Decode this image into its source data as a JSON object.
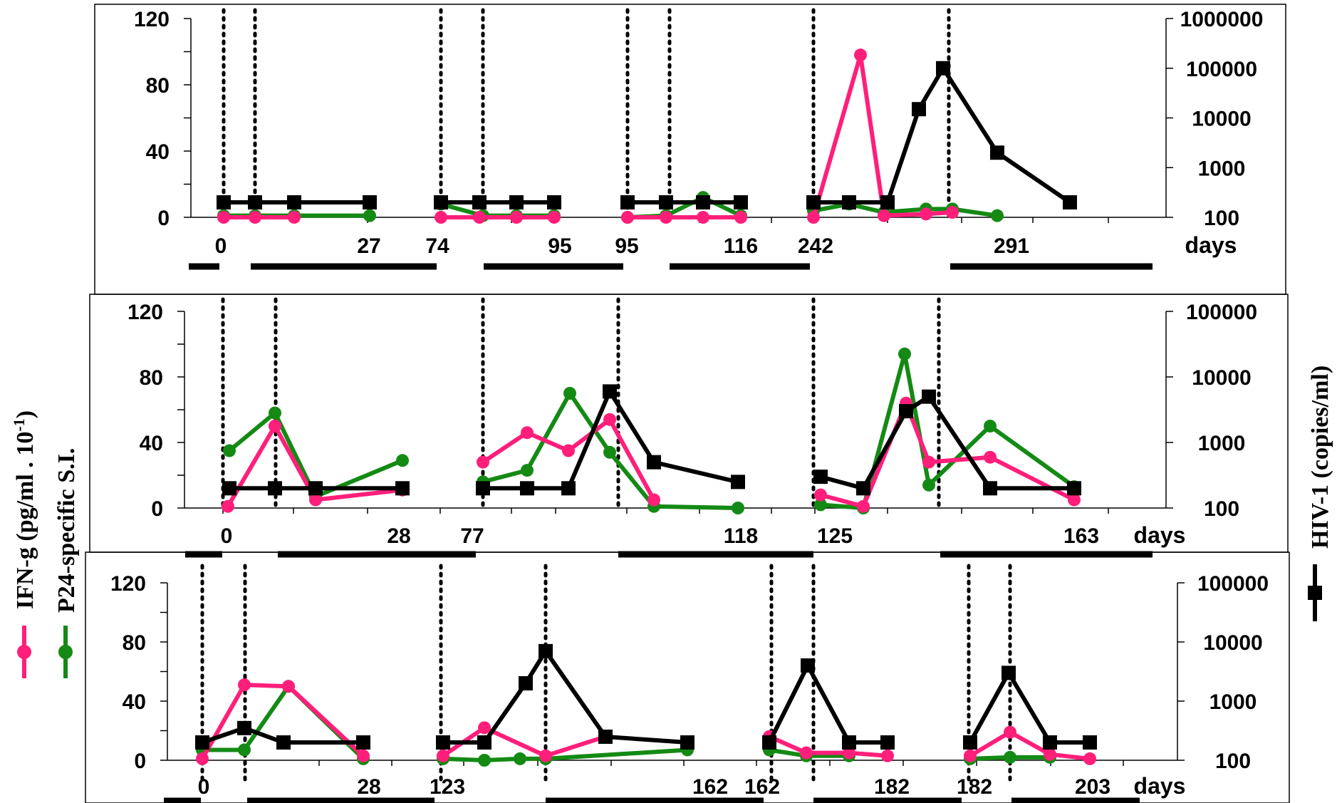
{
  "colors": {
    "ifn": "#ff1f7a",
    "p24": "#148a14",
    "hiv": "#000000"
  },
  "legend": {
    "left_line1": "IFN-g (pg/ml . 10",
    "left_line1_sup": "-1",
    "left_line1_end": ")",
    "left_line2": "P24-specific S.I.",
    "right": "HIV-1 (copies/ml)"
  },
  "chart_data": [
    {
      "type": "line",
      "panel": "top",
      "ylim": [
        0,
        120
      ],
      "yticks": [
        "120",
        "80",
        "40",
        "0"
      ],
      "y2scale": "log",
      "y2lim": [
        100,
        1000000
      ],
      "y2ticks": [
        "1000000",
        "100000",
        "10000",
        "1000",
        "100"
      ],
      "xunit": "days",
      "xlabels": [
        "0",
        "27",
        "74",
        "95",
        "95",
        "116",
        "242",
        "291"
      ],
      "vlines": 9,
      "series": [
        {
          "name": "IFN-g",
          "segments": [
            [
              0,
              0,
              0
            ],
            [
              0,
              0,
              0,
              0
            ],
            [
              0,
              0,
              0,
              0
            ],
            [
              0,
              98,
              1,
              2,
              3
            ]
          ]
        },
        {
          "name": "P24-specific S.I.",
          "segments": [
            [
              1,
              1,
              1,
              1
            ],
            [
              8,
              1,
              1,
              1
            ],
            [
              0,
              1,
              12,
              1
            ],
            [
              4,
              8,
              3,
              5,
              5,
              1
            ]
          ]
        },
        {
          "name": "HIV-1",
          "segments": [
            [
              200,
              200,
              200,
              200
            ],
            [
              200,
              200,
              200,
              200
            ],
            [
              200,
              200,
              200,
              200
            ],
            [
              200,
              200,
              200,
              15000,
              100000,
              2000,
              200
            ]
          ]
        }
      ]
    },
    {
      "type": "line",
      "panel": "middle",
      "ylim": [
        0,
        120
      ],
      "yticks": [
        "120",
        "80",
        "40",
        "0"
      ],
      "y2scale": "log",
      "y2lim": [
        100,
        100000
      ],
      "y2ticks": [
        "100000",
        "10000",
        "1000",
        "100"
      ],
      "xunit": "days",
      "xlabels": [
        "0",
        "28",
        "77",
        "118",
        "125",
        "163"
      ],
      "vlines": 6,
      "series": [
        {
          "name": "IFN-g",
          "segments": [
            [
              1,
              50,
              5,
              11
            ],
            [
              28,
              46,
              35,
              54,
              5
            ],
            [
              8,
              1,
              64,
              28,
              31,
              5
            ]
          ]
        },
        {
          "name": "P24-specific S.I.",
          "segments": [
            [
              35,
              58,
              7,
              29
            ],
            [
              16,
              23,
              70,
              34,
              1,
              0
            ],
            [
              2,
              0,
              94,
              14,
              50,
              13
            ]
          ]
        },
        {
          "name": "HIV-1",
          "segments": [
            [
              200,
              200,
              200,
              200
            ],
            [
              200,
              200,
              200,
              6000,
              500,
              250
            ],
            [
              300,
              200,
              3000,
              5000,
              200,
              200
            ]
          ]
        }
      ]
    },
    {
      "type": "line",
      "panel": "bottom",
      "ylim": [
        0,
        120
      ],
      "yticks": [
        "120",
        "80",
        "40",
        "0"
      ],
      "y2scale": "log",
      "y2lim": [
        100,
        100000
      ],
      "y2ticks": [
        "100000",
        "10000",
        "1000",
        "100"
      ],
      "xunit": "days",
      "xlabels": [
        "0",
        "28",
        "123",
        "162",
        "162",
        "182",
        "182",
        "203"
      ],
      "vlines": 8,
      "series": [
        {
          "name": "IFN-g",
          "segments": [
            [
              1,
              51,
              50,
              3
            ],
            [
              3,
              22,
              3,
              16
            ],
            [
              16,
              5,
              5,
              3
            ],
            [
              3,
              19,
              4,
              1
            ]
          ]
        },
        {
          "name": "P24-specific S.I.",
          "segments": [
            [
              7,
              7,
              50,
              1
            ],
            [
              1,
              0,
              1,
              1,
              7
            ],
            [
              7,
              3,
              3
            ],
            [
              1,
              2,
              2
            ]
          ]
        },
        {
          "name": "HIV-1",
          "segments": [
            [
              200,
              350,
              200,
              200
            ],
            [
              200,
              200,
              2000,
              7000,
              250,
              200
            ],
            [
              200,
              4000,
              200,
              200
            ],
            [
              200,
              3000,
              200,
              200
            ]
          ]
        }
      ]
    }
  ]
}
